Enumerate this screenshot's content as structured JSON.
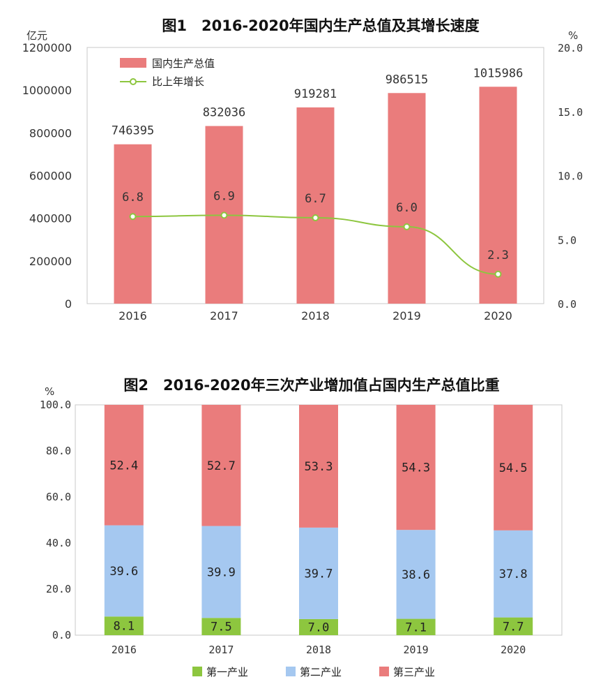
{
  "chart_data": [
    {
      "type": "bar",
      "title": "图1　2016-2020年国内生产总值及其增长速度",
      "ylabel_left": "亿元",
      "ylabel_right": "%",
      "categories": [
        "2016",
        "2017",
        "2018",
        "2019",
        "2020"
      ],
      "ylim_left": [
        0,
        1200000
      ],
      "ylim_right": [
        0,
        20
      ],
      "yticks_left": [
        "0",
        "200000",
        "400000",
        "600000",
        "800000",
        "1000000",
        "1200000"
      ],
      "yticks_right": [
        "0.0",
        "5.0",
        "10.0",
        "15.0",
        "20.0"
      ],
      "series": [
        {
          "name": "国内生产总值",
          "kind": "bar",
          "axis": "left",
          "values": [
            746395,
            832036,
            919281,
            986515,
            1015986
          ],
          "labels": [
            "746395",
            "832036",
            "919281",
            "986515",
            "1015986"
          ]
        },
        {
          "name": "比上年增长",
          "kind": "line",
          "axis": "right",
          "values": [
            6.8,
            6.9,
            6.7,
            6.0,
            2.3
          ],
          "labels": [
            "6.8",
            "6.9",
            "6.7",
            "6.0",
            "2.3"
          ]
        }
      ],
      "legend_position": "top-left",
      "colors": {
        "bar": "#ea7c7c",
        "line": "#8dc63f"
      }
    },
    {
      "type": "bar",
      "stacked": true,
      "title": "图2　2016-2020年三次产业增加值占国内生产总值比重",
      "ylabel": "%",
      "categories": [
        "2016",
        "2017",
        "2018",
        "2019",
        "2020"
      ],
      "ylim": [
        0,
        100
      ],
      "yticks": [
        "0.0",
        "20.0",
        "40.0",
        "60.0",
        "80.0",
        "100.0"
      ],
      "series": [
        {
          "name": "第一产业",
          "values": [
            8.1,
            7.5,
            7.0,
            7.1,
            7.7
          ],
          "labels": [
            "8.1",
            "7.5",
            "7.0",
            "7.1",
            "7.7"
          ]
        },
        {
          "name": "第二产业",
          "values": [
            39.6,
            39.9,
            39.7,
            38.6,
            37.8
          ],
          "labels": [
            "39.6",
            "39.9",
            "39.7",
            "38.6",
            "37.8"
          ]
        },
        {
          "name": "第三产业",
          "values": [
            52.4,
            52.7,
            53.3,
            54.3,
            54.5
          ],
          "labels": [
            "52.4",
            "52.7",
            "53.3",
            "54.3",
            "54.5"
          ]
        }
      ],
      "legend_position": "bottom",
      "colors": {
        "第一产业": "#8dc63f",
        "第二产业": "#a5c8f0",
        "第三产业": "#ea7c7c"
      }
    }
  ]
}
